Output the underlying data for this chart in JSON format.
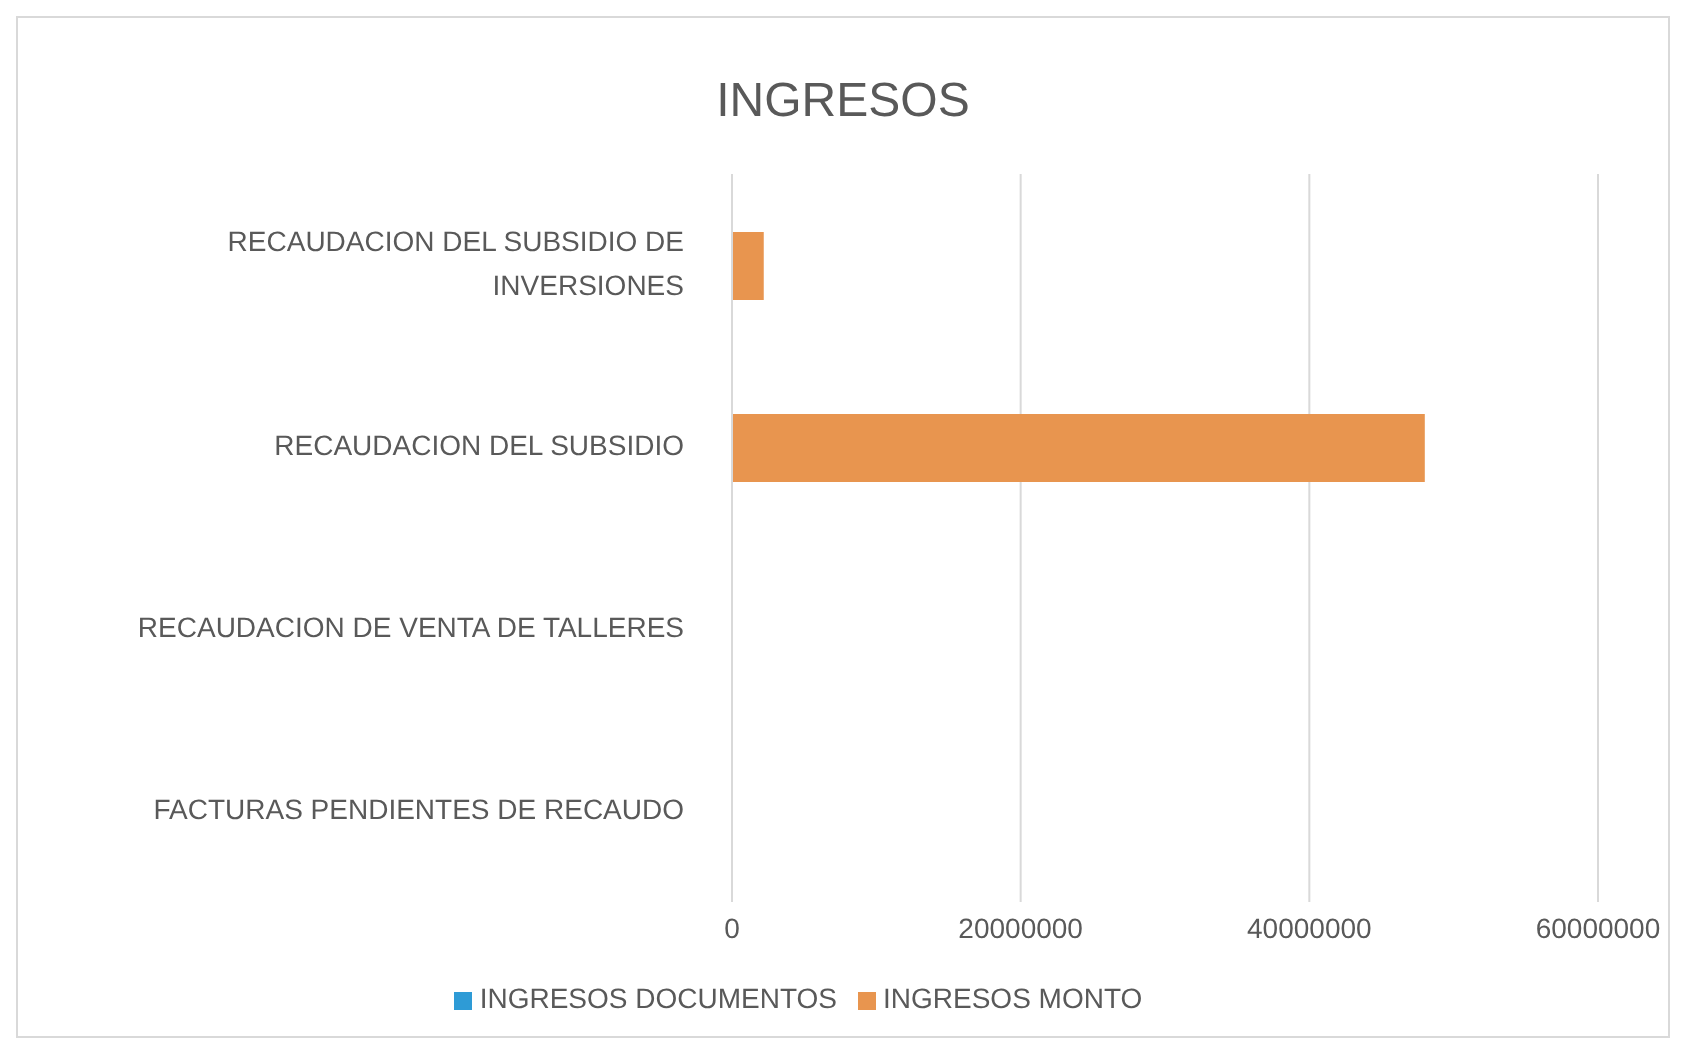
{
  "chart_data": {
    "type": "bar",
    "orientation": "horizontal",
    "title": "INGRESOS",
    "categories": [
      "RECAUDACION DEL SUBSIDIO DE INVERSIONES",
      "RECAUDACION DEL SUBSIDIO",
      "RECAUDACION DE VENTA DE TALLERES",
      "FACTURAS PENDIENTES DE RECAUDO"
    ],
    "series": [
      {
        "name": "INGRESOS DOCUMENTOS",
        "color": "#2e9bd6",
        "values": [
          0,
          0,
          0,
          0
        ]
      },
      {
        "name": "INGRESOS MONTO",
        "color": "#e8954f",
        "values": [
          2200000,
          48000000,
          0,
          0
        ]
      }
    ],
    "xlim": [
      0,
      60000000
    ],
    "xticks": [
      0,
      20000000,
      40000000,
      60000000
    ],
    "grid": "x",
    "legend": "bottom"
  }
}
